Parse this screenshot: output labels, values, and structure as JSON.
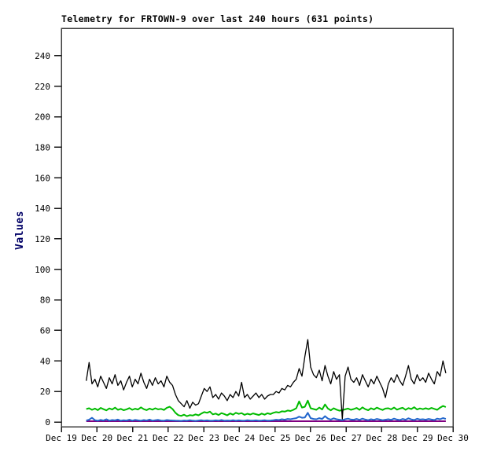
{
  "window": {
    "background": "#ffffff",
    "frame_color": "#3c3c3c",
    "tick_color": "#1a1a1a",
    "ylabel_color": "#000066"
  },
  "chart_data": {
    "type": "line",
    "title": "Telemetry for FRTOWN-9 over last 240 hours (631 points)",
    "xlabel": "",
    "ylabel": "Values",
    "grid": false,
    "legend_position": "none",
    "ylim": [
      0,
      258
    ],
    "y_ticks": [
      0,
      20,
      40,
      60,
      80,
      100,
      120,
      140,
      160,
      180,
      200,
      220,
      240
    ],
    "x_tick_labels": [
      "Dec 19",
      "Dec 20",
      "Dec 21",
      "Dec 22",
      "Dec 23",
      "Dec 24",
      "Dec 25",
      "Dec 26",
      "Dec 27",
      "Dec 28",
      "Dec 29",
      "Dec 30"
    ],
    "x_axis_span_days": 11,
    "series_x_span_days": [
      0.7,
      10.8
    ],
    "series": [
      {
        "name": "purple-series",
        "color": "#800080",
        "width": 2,
        "values": [
          0.5,
          0.5
        ]
      },
      {
        "name": "blue-series",
        "color": "#2266cc",
        "width": 2,
        "values": [
          1,
          1.5,
          2.8,
          1.2,
          0.8,
          1.4,
          1,
          1.8,
          0.9,
          1.3,
          1.1,
          1.6,
          0.8,
          1.2,
          1,
          1.5,
          0.9,
          1.4,
          1.1,
          0.8,
          1.3,
          1,
          1.6,
          0.9,
          1.2,
          1.4,
          1,
          0.8,
          1.3,
          1.1,
          1,
          0.9,
          0.8,
          0.7,
          1,
          0.8,
          1.2,
          0.9,
          0.7,
          1,
          1.2,
          0.9,
          1.1,
          0.8,
          0.8,
          1.1,
          0.9,
          1.3,
          0.8,
          1,
          0.9,
          1.2,
          0.8,
          1.1,
          0.9,
          0.8,
          1.2,
          1,
          0.9,
          1.1,
          0.8,
          1,
          1.2,
          0.9,
          1,
          1.2,
          1.5,
          1.3,
          1.8,
          1.5,
          2,
          1.8,
          2.2,
          2.5,
          3.5,
          2.8,
          3,
          6,
          2.5,
          2,
          1.8,
          2.5,
          2,
          3.8,
          2.2,
          1.6,
          2.4,
          1.8,
          1.5,
          1.2,
          1.8,
          2.2,
          1.6,
          1.5,
          2,
          1.4,
          2.2,
          1.6,
          1.2,
          1.8,
          1.4,
          2,
          1.6,
          1.2,
          1.5,
          1.8,
          1.4,
          2.2,
          1.6,
          1.3,
          2,
          1.5,
          2.4,
          1.7,
          1.3,
          2.1,
          1.6,
          1.8,
          1.5,
          2,
          1.6,
          1.3,
          2.2,
          1.8,
          2.6,
          2
        ]
      },
      {
        "name": "green-series",
        "color": "#00bb00",
        "width": 2,
        "values": [
          8.5,
          9,
          8,
          8.8,
          7.8,
          9.2,
          8.4,
          7.6,
          8.9,
          8.2,
          9.4,
          8,
          8.6,
          7.7,
          8.3,
          9.1,
          8,
          8.7,
          8.2,
          9.6,
          8.4,
          7.8,
          8.8,
          8.1,
          9,
          8.3,
          8.6,
          7.9,
          9.3,
          10,
          8.5,
          6,
          4.5,
          4,
          4.8,
          3.8,
          4.5,
          4.2,
          5,
          4.4,
          5.5,
          6.5,
          6,
          6.8,
          5,
          5.5,
          4.6,
          5.8,
          5.2,
          4.4,
          5.6,
          4.8,
          6,
          5.3,
          5.8,
          4.7,
          5.4,
          4.9,
          5.6,
          5.1,
          4.6,
          5.5,
          4.8,
          5.7,
          5.2,
          6,
          6.5,
          6.2,
          7,
          6.8,
          7.5,
          7.2,
          8,
          9,
          13.5,
          9.5,
          10,
          14,
          9,
          8.5,
          8,
          9.5,
          8.2,
          11.5,
          8.8,
          7.6,
          9,
          8.1,
          7.4,
          7.8,
          8.3,
          8.8,
          8,
          8.5,
          9.2,
          8,
          9.6,
          8.4,
          7.7,
          9,
          8.2,
          9.4,
          8.6,
          7.9,
          8.8,
          9,
          8.3,
          9.5,
          8.1,
          8.8,
          9.3,
          8,
          9.1,
          8.5,
          9.7,
          8.2,
          8.9,
          8.4,
          9,
          8.4,
          9.2,
          8.6,
          8,
          9.4,
          10.5,
          9.8
        ]
      },
      {
        "name": "black-series",
        "color": "#000000",
        "width": 1.3,
        "values": [
          27,
          39,
          25,
          28,
          23,
          30,
          26,
          22,
          29,
          25,
          31,
          24,
          27,
          21,
          26,
          30,
          23,
          28,
          25,
          32,
          26,
          22,
          28,
          24,
          29,
          25,
          27,
          23,
          30,
          26,
          24,
          18,
          14,
          12,
          10,
          14,
          9,
          13,
          11,
          12,
          17,
          22,
          20,
          23,
          16,
          18,
          15,
          19,
          17,
          14,
          18,
          16,
          20,
          17,
          26,
          16,
          18,
          15,
          17,
          19,
          16,
          18,
          15,
          17,
          18,
          18,
          20,
          19,
          22,
          21,
          24,
          23,
          26,
          28,
          35,
          30,
          43,
          54,
          36,
          31,
          29,
          34,
          27,
          37,
          30,
          25,
          33,
          28,
          31,
          2,
          30,
          36,
          28,
          26,
          29,
          24,
          31,
          27,
          23,
          28,
          25,
          30,
          26,
          22,
          16,
          25,
          29,
          26,
          31,
          27,
          24,
          30,
          37,
          28,
          25,
          31,
          27,
          29,
          26,
          32,
          28,
          25,
          33,
          30,
          40,
          32
        ]
      }
    ]
  }
}
